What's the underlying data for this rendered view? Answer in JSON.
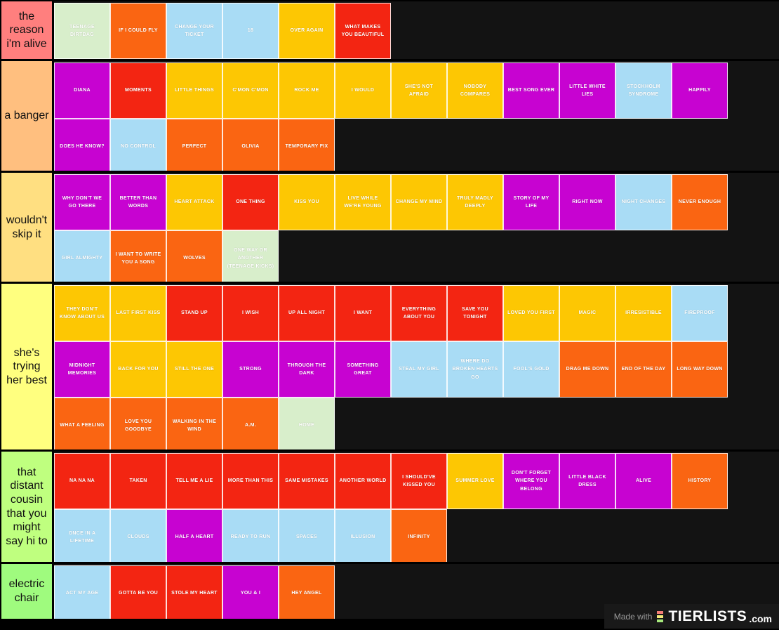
{
  "card_colors": {
    "red": "#f32512",
    "orange": "#fa6512",
    "gold": "#fdc703",
    "magenta": "#c703d1",
    "blue": "#a9dcf5",
    "green": "#d8eecb"
  },
  "tiers": [
    {
      "label": "the reason i'm alive",
      "label_color": "#ff7f7e",
      "cards": [
        {
          "t": "TEENAGE DIRTBAG",
          "c": "green"
        },
        {
          "t": "IF I COULD FLY",
          "c": "orange"
        },
        {
          "t": "CHANGE YOUR TICKET",
          "c": "blue"
        },
        {
          "t": "18",
          "c": "blue"
        },
        {
          "t": "OVER AGAIN",
          "c": "gold"
        },
        {
          "t": "WHAT MAKES YOU BEAUTIFUL",
          "c": "red"
        }
      ]
    },
    {
      "label": "a banger",
      "label_color": "#ffbf7f",
      "cards": [
        {
          "t": "DIANA",
          "c": "magenta"
        },
        {
          "t": "MOMENTS",
          "c": "red"
        },
        {
          "t": "LITTLE THINGS",
          "c": "gold"
        },
        {
          "t": "C'MON C'MON",
          "c": "gold"
        },
        {
          "t": "ROCK ME",
          "c": "gold"
        },
        {
          "t": "I WOULD",
          "c": "gold"
        },
        {
          "t": "SHE'S NOT AFRAID",
          "c": "gold"
        },
        {
          "t": "NOBODY COMPARES",
          "c": "gold"
        },
        {
          "t": "BEST SONG EVER",
          "c": "magenta"
        },
        {
          "t": "LITTLE WHITE LIES",
          "c": "magenta"
        },
        {
          "t": "STOCKHOLM SYNDROME",
          "c": "blue"
        },
        {
          "t": "HAPPILY",
          "c": "magenta"
        },
        {
          "t": "DOES HE KNOW?",
          "c": "magenta"
        },
        {
          "t": "NO CONTROL",
          "c": "blue"
        },
        {
          "t": "PERFECT",
          "c": "orange"
        },
        {
          "t": "OLIVIA",
          "c": "orange"
        },
        {
          "t": "TEMPORARY FIX",
          "c": "orange"
        }
      ]
    },
    {
      "label": "wouldn't skip it",
      "label_color": "#ffdf81",
      "cards": [
        {
          "t": "WHY DON'T WE GO THERE",
          "c": "magenta"
        },
        {
          "t": "BETTER THAN WORDS",
          "c": "magenta"
        },
        {
          "t": "HEART ATTACK",
          "c": "gold"
        },
        {
          "t": "ONE THING",
          "c": "red"
        },
        {
          "t": "KISS YOU",
          "c": "gold"
        },
        {
          "t": "LIVE WHILE WE'RE YOUNG",
          "c": "gold"
        },
        {
          "t": "CHANGE MY MIND",
          "c": "gold"
        },
        {
          "t": "TRULY MADLY DEEPLY",
          "c": "gold"
        },
        {
          "t": "STORY OF MY LIFE",
          "c": "magenta"
        },
        {
          "t": "RIGHT NOW",
          "c": "magenta"
        },
        {
          "t": "NIGHT CHANGES",
          "c": "blue"
        },
        {
          "t": "NEVER ENOUGH",
          "c": "orange"
        },
        {
          "t": "GIRL ALMIGHTY",
          "c": "blue"
        },
        {
          "t": "I WANT TO WRITE YOU A SONG",
          "c": "orange"
        },
        {
          "t": "WOLVES",
          "c": "orange"
        },
        {
          "t": "ONE WAY OR ANOTHER (TEENAGE KICKS)",
          "c": "green"
        }
      ]
    },
    {
      "label": "she's trying her best",
      "label_color": "#ffff7f",
      "cards": [
        {
          "t": "THEY DON'T KNOW ABOUT US",
          "c": "gold"
        },
        {
          "t": "LAST FIRST KISS",
          "c": "gold"
        },
        {
          "t": "STAND UP",
          "c": "red"
        },
        {
          "t": "I WISH",
          "c": "red"
        },
        {
          "t": "UP ALL NIGHT",
          "c": "red"
        },
        {
          "t": "I WANT",
          "c": "red"
        },
        {
          "t": "EVERYTHING ABOUT YOU",
          "c": "red"
        },
        {
          "t": "SAVE YOU TONIGHT",
          "c": "red"
        },
        {
          "t": "LOVED YOU FIRST",
          "c": "gold"
        },
        {
          "t": "MAGIC",
          "c": "gold"
        },
        {
          "t": "IRRESISTIBLE",
          "c": "gold"
        },
        {
          "t": "FIREPROOF",
          "c": "blue"
        },
        {
          "t": "MIDNIGHT MEMORIES",
          "c": "magenta"
        },
        {
          "t": "BACK FOR YOU",
          "c": "gold"
        },
        {
          "t": "STILL THE ONE",
          "c": "gold"
        },
        {
          "t": "STRONG",
          "c": "magenta"
        },
        {
          "t": "THROUGH THE DARK",
          "c": "magenta"
        },
        {
          "t": "SOMETHING GREAT",
          "c": "magenta"
        },
        {
          "t": "STEAL MY GIRL",
          "c": "blue"
        },
        {
          "t": "WHERE DO BROKEN HEARTS GO",
          "c": "blue"
        },
        {
          "t": "FOOL'S GOLD",
          "c": "blue"
        },
        {
          "t": "DRAG ME DOWN",
          "c": "orange"
        },
        {
          "t": "END OF THE DAY",
          "c": "orange"
        },
        {
          "t": "LONG WAY DOWN",
          "c": "orange"
        },
        {
          "t": "WHAT A FEELING",
          "c": "orange"
        },
        {
          "t": "LOVE YOU GOODBYE",
          "c": "orange"
        },
        {
          "t": "WALKING IN THE WIND",
          "c": "orange"
        },
        {
          "t": "A.M.",
          "c": "orange"
        },
        {
          "t": "HOME",
          "c": "green"
        }
      ]
    },
    {
      "label": "that distant cousin that you might say hi to",
      "label_color": "#bfff7f",
      "cards": [
        {
          "t": "NA NA NA",
          "c": "red"
        },
        {
          "t": "TAKEN",
          "c": "red"
        },
        {
          "t": "TELL ME A LIE",
          "c": "red"
        },
        {
          "t": "MORE THAN THIS",
          "c": "red"
        },
        {
          "t": "SAME MISTAKES",
          "c": "red"
        },
        {
          "t": "ANOTHER WORLD",
          "c": "red"
        },
        {
          "t": "I SHOULD'VE KISSED YOU",
          "c": "red"
        },
        {
          "t": "SUMMER LOVE",
          "c": "gold"
        },
        {
          "t": "DON'T FORGET WHERE YOU BELONG",
          "c": "magenta"
        },
        {
          "t": "LITTLE BLACK DRESS",
          "c": "magenta"
        },
        {
          "t": "ALIVE",
          "c": "magenta"
        },
        {
          "t": "HISTORY",
          "c": "orange"
        },
        {
          "t": "ONCE IN A LIFETIME",
          "c": "blue"
        },
        {
          "t": "CLOUDS",
          "c": "blue"
        },
        {
          "t": "HALF A HEART",
          "c": "magenta"
        },
        {
          "t": "READY TO RUN",
          "c": "blue"
        },
        {
          "t": "SPACES",
          "c": "blue"
        },
        {
          "t": "ILLUSION",
          "c": "blue"
        },
        {
          "t": "INFINITY",
          "c": "orange"
        }
      ]
    },
    {
      "label": "electric chair",
      "label_color": "#9ffb7e",
      "cards": [
        {
          "t": "ACT MY AGE",
          "c": "blue"
        },
        {
          "t": "GOTTA BE YOU",
          "c": "red"
        },
        {
          "t": "STOLE MY HEART",
          "c": "red"
        },
        {
          "t": "YOU & I",
          "c": "magenta"
        },
        {
          "t": "HEY ANGEL",
          "c": "orange"
        }
      ]
    }
  ],
  "watermark": {
    "made_with": "Made with",
    "brand": "TIERLISTS",
    "domain": ".com",
    "icon_colors": [
      "#f47d76",
      "#f6ec7c",
      "#a6e87c"
    ]
  }
}
